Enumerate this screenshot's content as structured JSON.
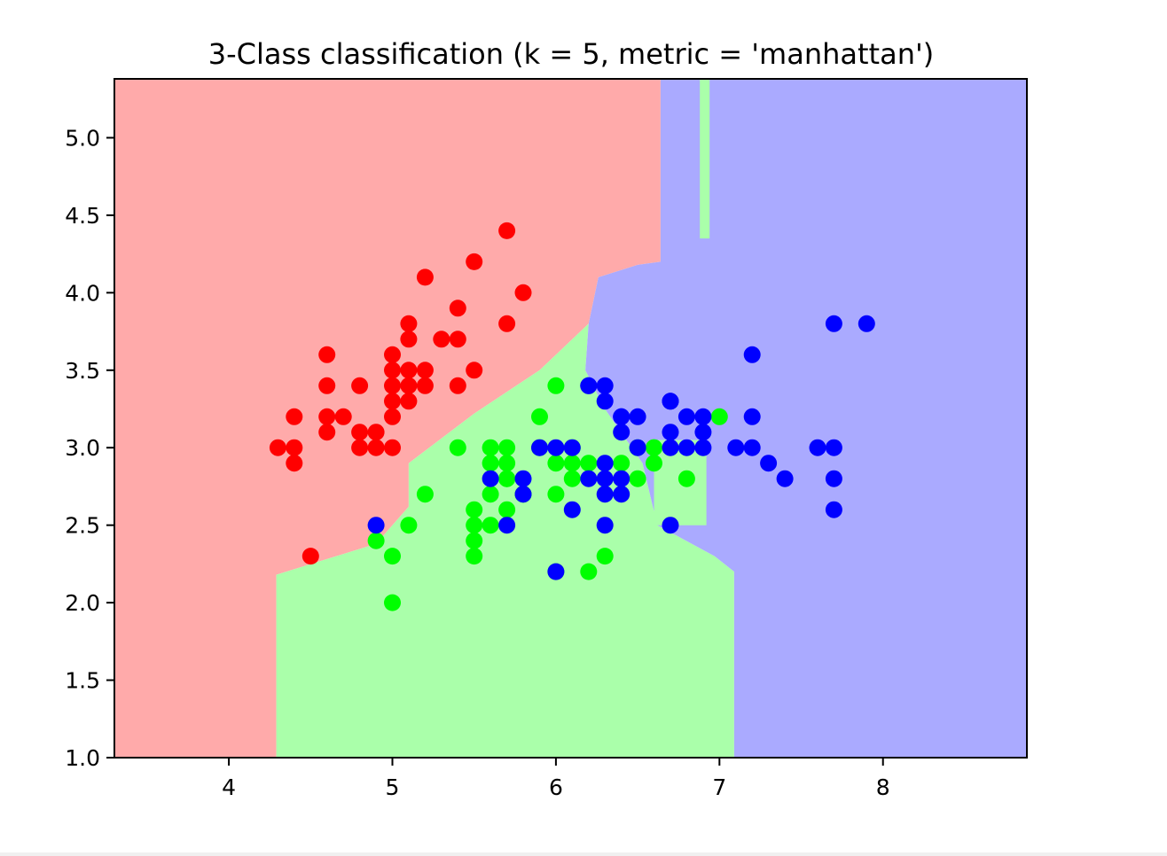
{
  "chart_data": {
    "type": "scatter",
    "title": "3-Class classification (k = 5, metric = 'manhattan')",
    "xlabel": "",
    "ylabel": "",
    "xlim": [
      3.3,
      8.88
    ],
    "ylim": [
      1.0,
      5.38
    ],
    "xticks": [
      {
        "value": 4,
        "label": "4"
      },
      {
        "value": 5,
        "label": "5"
      },
      {
        "value": 6,
        "label": "6"
      },
      {
        "value": 7,
        "label": "7"
      },
      {
        "value": 8,
        "label": "8"
      }
    ],
    "yticks": [
      {
        "value": 1.0,
        "label": "1.0"
      },
      {
        "value": 1.5,
        "label": "1.5"
      },
      {
        "value": 2.0,
        "label": "2.0"
      },
      {
        "value": 2.5,
        "label": "2.5"
      },
      {
        "value": 3.0,
        "label": "3.0"
      },
      {
        "value": 3.5,
        "label": "3.5"
      },
      {
        "value": 4.0,
        "label": "4.0"
      },
      {
        "value": 4.5,
        "label": "4.5"
      },
      {
        "value": 5.0,
        "label": "5.0"
      }
    ],
    "grid": false,
    "regions": [
      {
        "class": 0,
        "color": "#ffaaaa",
        "polygon": [
          [
            3.3,
            1.0
          ],
          [
            4.29,
            1.0
          ],
          [
            4.29,
            2.18
          ],
          [
            4.9,
            2.38
          ],
          [
            5.1,
            2.62
          ],
          [
            5.1,
            2.9
          ],
          [
            5.5,
            3.22
          ],
          [
            5.9,
            3.5
          ],
          [
            6.2,
            3.8
          ],
          [
            6.26,
            4.1
          ],
          [
            6.5,
            4.18
          ],
          [
            6.64,
            4.2
          ],
          [
            6.64,
            5.38
          ],
          [
            3.3,
            5.38
          ]
        ]
      },
      {
        "class": 1,
        "color": "#aaffaa",
        "polygon": [
          [
            4.29,
            1.0
          ],
          [
            7.09,
            1.0
          ],
          [
            7.09,
            2.2
          ],
          [
            6.97,
            2.3
          ],
          [
            6.62,
            2.5
          ],
          [
            6.53,
            2.9
          ],
          [
            6.3,
            3.25
          ],
          [
            6.18,
            3.5
          ],
          [
            6.2,
            3.8
          ],
          [
            5.9,
            3.5
          ],
          [
            5.5,
            3.22
          ],
          [
            5.1,
            2.9
          ],
          [
            5.1,
            2.62
          ],
          [
            4.9,
            2.38
          ],
          [
            4.29,
            2.18
          ]
        ]
      },
      {
        "class": 2,
        "color": "#aaaaff",
        "polygon": [
          [
            6.64,
            5.38
          ],
          [
            8.88,
            5.38
          ],
          [
            8.88,
            1.0
          ],
          [
            7.09,
            1.0
          ],
          [
            7.09,
            2.2
          ],
          [
            6.97,
            2.3
          ],
          [
            6.62,
            2.5
          ],
          [
            6.53,
            2.9
          ],
          [
            6.3,
            3.25
          ],
          [
            6.18,
            3.5
          ],
          [
            6.2,
            3.8
          ],
          [
            6.26,
            4.1
          ],
          [
            6.5,
            4.18
          ],
          [
            6.64,
            4.2
          ]
        ]
      },
      {
        "class": 1,
        "color": "#aaffaa",
        "polygon": [
          [
            6.88,
            4.35
          ],
          [
            6.94,
            4.35
          ],
          [
            6.94,
            5.38
          ],
          [
            6.88,
            5.38
          ]
        ]
      },
      {
        "class": 1,
        "color": "#aaffaa",
        "polygon": [
          [
            6.6,
            2.5
          ],
          [
            6.92,
            2.5
          ],
          [
            6.92,
            3.05
          ],
          [
            6.6,
            3.05
          ]
        ]
      }
    ],
    "series": [
      {
        "class": 0,
        "color": "#ff0000",
        "points": [
          [
            5.1,
            3.5
          ],
          [
            4.9,
            3.0
          ],
          [
            4.7,
            3.2
          ],
          [
            4.6,
            3.1
          ],
          [
            5.0,
            3.6
          ],
          [
            5.4,
            3.9
          ],
          [
            4.6,
            3.4
          ],
          [
            5.0,
            3.4
          ],
          [
            4.4,
            2.9
          ],
          [
            4.9,
            3.1
          ],
          [
            5.4,
            3.7
          ],
          [
            4.8,
            3.4
          ],
          [
            4.8,
            3.0
          ],
          [
            4.3,
            3.0
          ],
          [
            5.8,
            4.0
          ],
          [
            5.7,
            4.4
          ],
          [
            5.7,
            3.8
          ],
          [
            5.1,
            3.8
          ],
          [
            5.4,
            3.4
          ],
          [
            5.1,
            3.7
          ],
          [
            4.6,
            3.6
          ],
          [
            5.0,
            3.0
          ],
          [
            5.2,
            3.5
          ],
          [
            5.2,
            3.4
          ],
          [
            4.8,
            3.1
          ],
          [
            5.5,
            4.2
          ],
          [
            5.5,
            3.5
          ],
          [
            4.4,
            3.0
          ],
          [
            5.0,
            3.5
          ],
          [
            4.5,
            2.3
          ],
          [
            4.4,
            3.2
          ],
          [
            5.1,
            3.3
          ],
          [
            5.3,
            3.7
          ],
          [
            5.2,
            4.1
          ],
          [
            5.0,
            3.2
          ],
          [
            4.6,
            3.2
          ],
          [
            5.0,
            3.3
          ],
          [
            5.1,
            3.4
          ]
        ]
      },
      {
        "class": 1,
        "color": "#00ff00",
        "points": [
          [
            5.5,
            2.3
          ],
          [
            5.7,
            2.8
          ],
          [
            4.9,
            2.4
          ],
          [
            6.6,
            2.9
          ],
          [
            5.2,
            2.7
          ],
          [
            5.0,
            2.0
          ],
          [
            5.9,
            3.0
          ],
          [
            6.0,
            2.2
          ],
          [
            5.6,
            2.9
          ],
          [
            5.8,
            2.7
          ],
          [
            6.2,
            2.2
          ],
          [
            5.6,
            2.5
          ],
          [
            5.9,
            3.2
          ],
          [
            6.1,
            2.8
          ],
          [
            6.6,
            3.0
          ],
          [
            6.8,
            2.8
          ],
          [
            6.0,
            2.9
          ],
          [
            5.7,
            2.6
          ],
          [
            5.5,
            2.4
          ],
          [
            5.8,
            2.7
          ],
          [
            6.0,
            2.7
          ],
          [
            5.4,
            3.0
          ],
          [
            6.0,
            3.4
          ],
          [
            6.3,
            2.3
          ],
          [
            5.6,
            3.0
          ],
          [
            5.5,
            2.5
          ],
          [
            5.5,
            2.6
          ],
          [
            6.1,
            3.0
          ],
          [
            5.0,
            2.3
          ],
          [
            5.6,
            2.7
          ],
          [
            5.7,
            3.0
          ],
          [
            5.7,
            2.9
          ],
          [
            5.1,
            2.5
          ],
          [
            7.0,
            3.2
          ],
          [
            6.5,
            2.8
          ],
          [
            5.7,
            2.8
          ],
          [
            6.2,
            2.9
          ],
          [
            6.6,
            3.0
          ],
          [
            6.1,
            2.9
          ],
          [
            6.4,
            2.9
          ],
          [
            6.5,
            3.0
          ]
        ]
      },
      {
        "class": 2,
        "color": "#0000ff",
        "points": [
          [
            6.3,
            3.3
          ],
          [
            5.8,
            2.7
          ],
          [
            7.1,
            3.0
          ],
          [
            6.3,
            2.9
          ],
          [
            6.5,
            3.0
          ],
          [
            7.6,
            3.0
          ],
          [
            4.9,
            2.5
          ],
          [
            7.3,
            2.9
          ],
          [
            6.7,
            2.5
          ],
          [
            7.2,
            3.6
          ],
          [
            6.5,
            3.2
          ],
          [
            6.4,
            2.7
          ],
          [
            6.8,
            3.0
          ],
          [
            5.7,
            2.5
          ],
          [
            6.4,
            3.2
          ],
          [
            7.7,
            3.8
          ],
          [
            7.7,
            2.6
          ],
          [
            6.0,
            2.2
          ],
          [
            6.9,
            3.2
          ],
          [
            5.6,
            2.8
          ],
          [
            7.7,
            2.8
          ],
          [
            6.7,
            3.3
          ],
          [
            7.2,
            3.2
          ],
          [
            6.2,
            2.8
          ],
          [
            6.1,
            3.0
          ],
          [
            6.4,
            2.8
          ],
          [
            7.2,
            3.0
          ],
          [
            7.4,
            2.8
          ],
          [
            7.9,
            3.8
          ],
          [
            6.1,
            2.6
          ],
          [
            7.7,
            3.0
          ],
          [
            6.3,
            3.4
          ],
          [
            6.4,
            3.1
          ],
          [
            6.9,
            3.1
          ],
          [
            6.7,
            3.1
          ],
          [
            5.8,
            2.8
          ],
          [
            6.8,
            3.2
          ],
          [
            6.7,
            3.0
          ],
          [
            6.3,
            2.5
          ],
          [
            6.2,
            3.4
          ],
          [
            5.9,
            3.0
          ],
          [
            6.0,
            3.0
          ],
          [
            6.9,
            3.0
          ],
          [
            6.3,
            2.8
          ],
          [
            6.4,
            3.2
          ],
          [
            6.3,
            2.7
          ],
          [
            6.7,
            3.3
          ],
          [
            6.2,
            3.4
          ]
        ]
      }
    ]
  }
}
